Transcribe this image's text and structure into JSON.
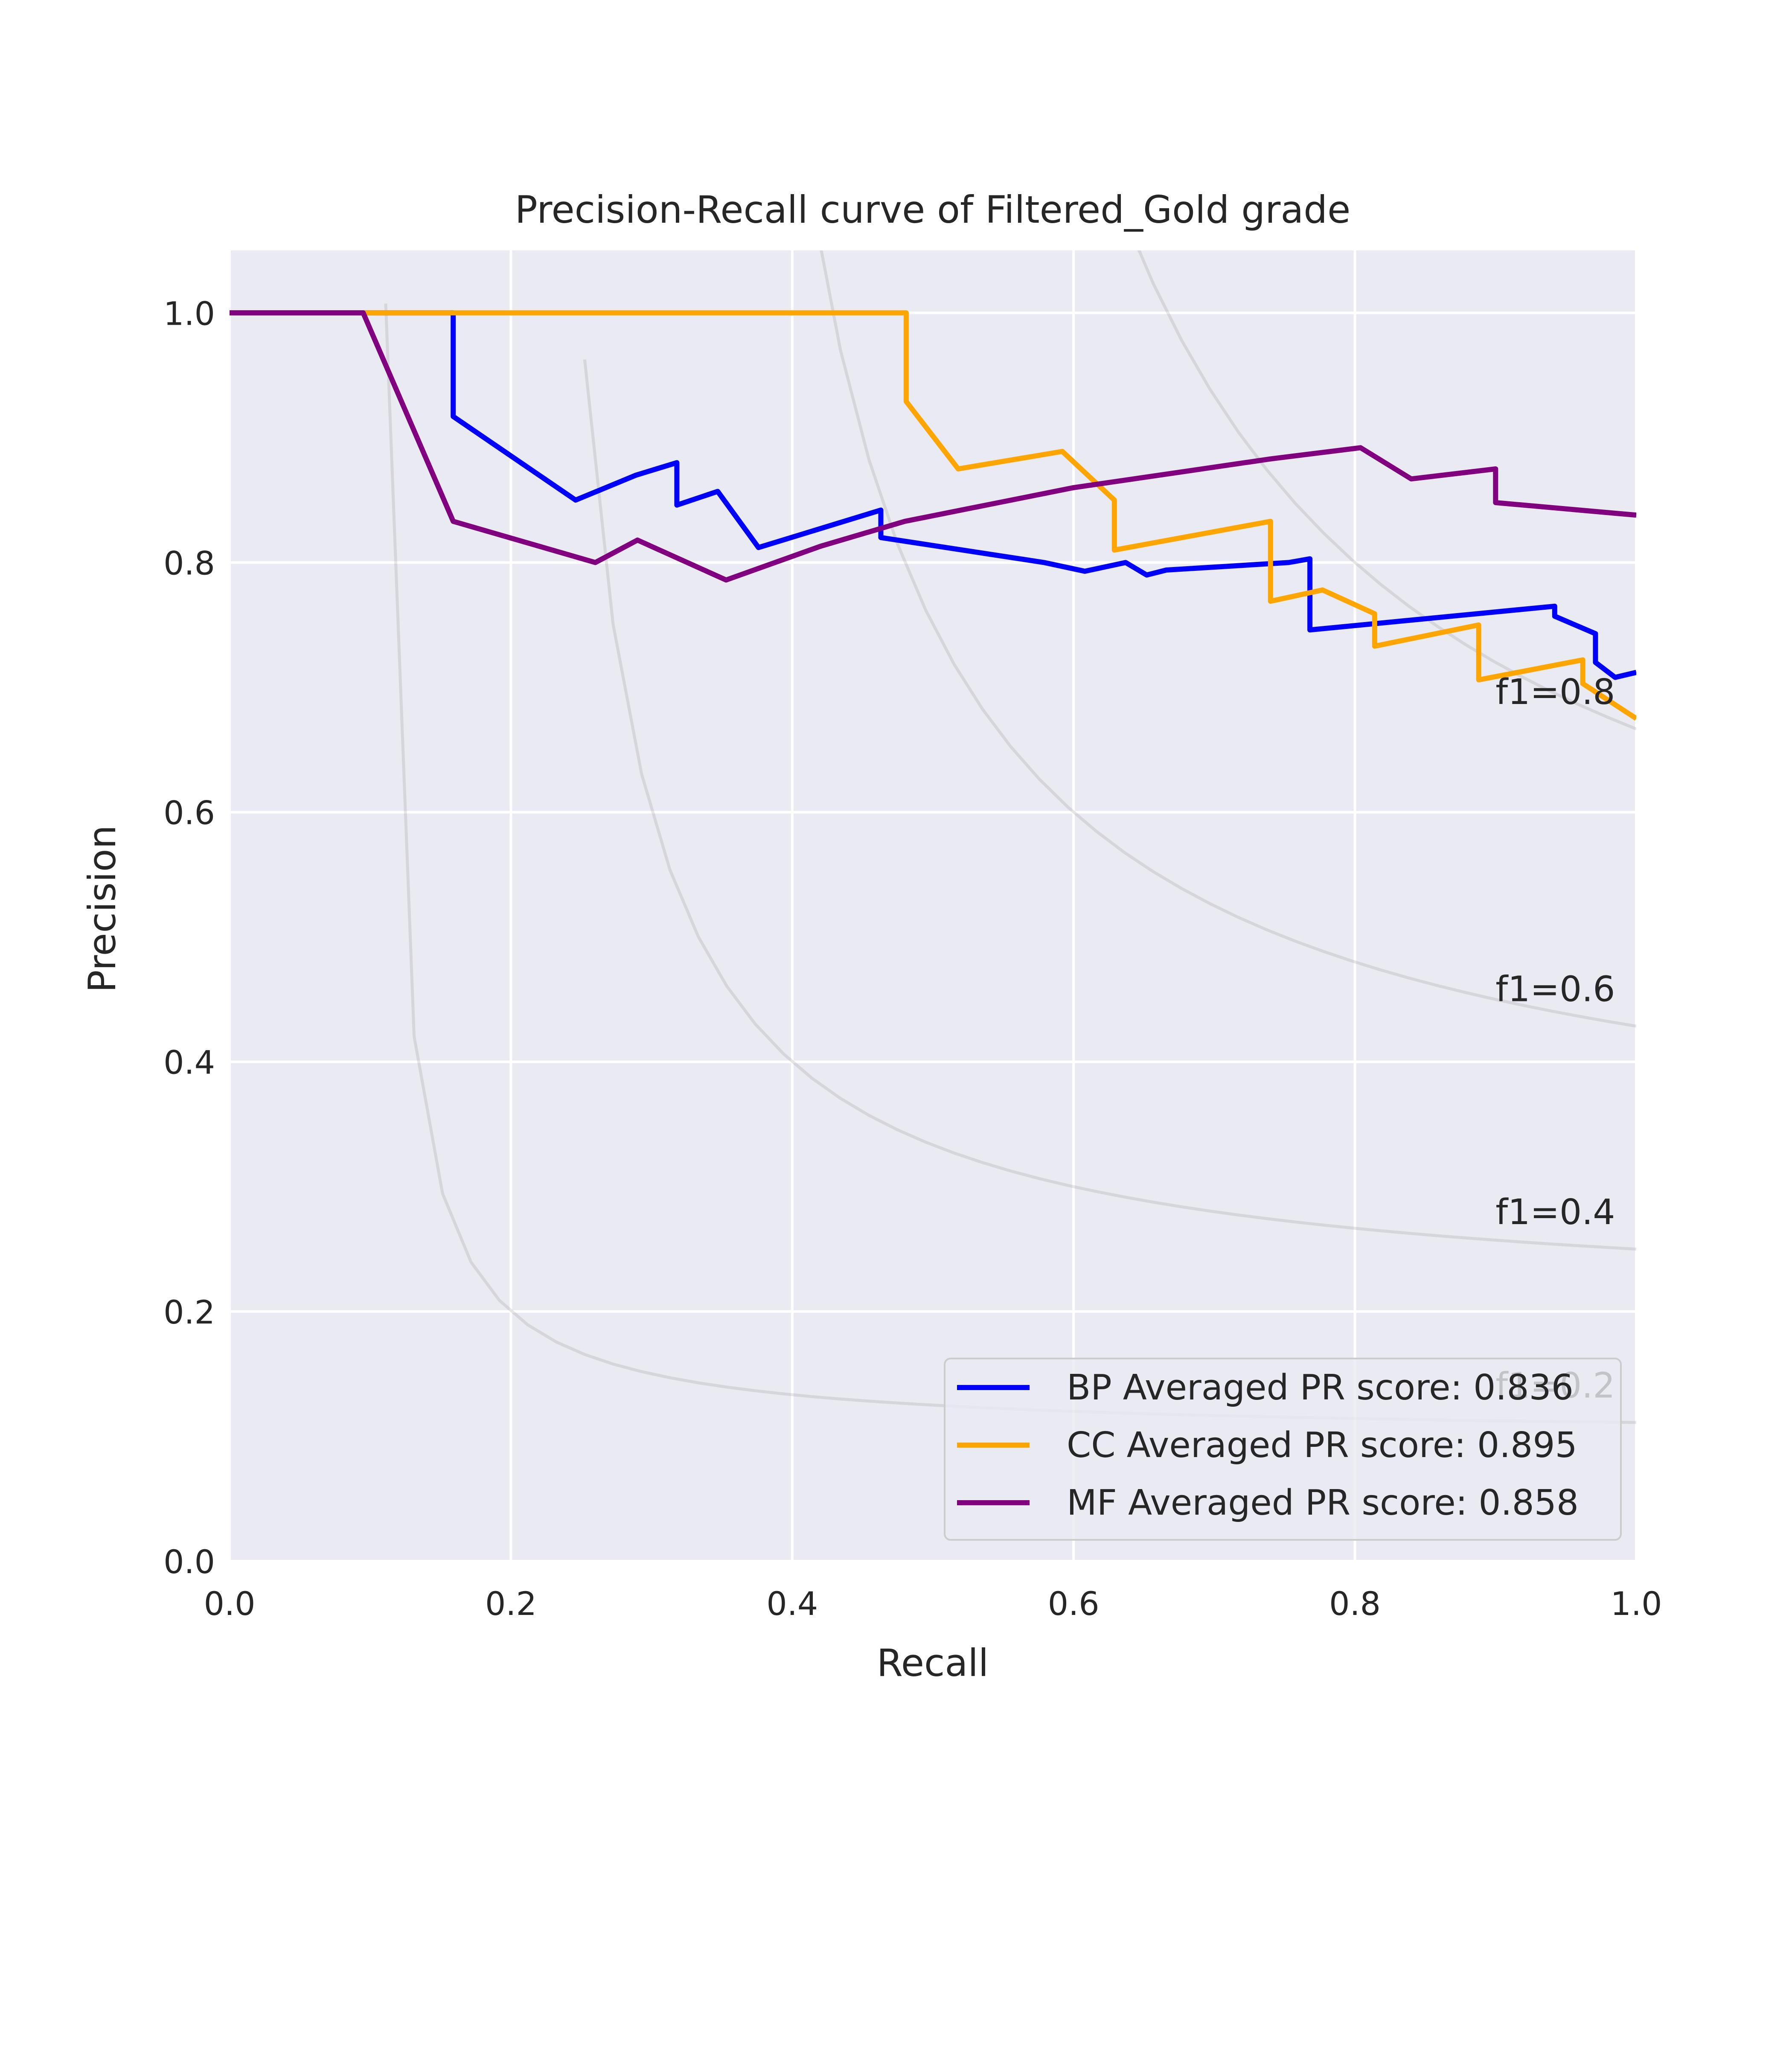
{
  "chart_data": {
    "type": "line",
    "title": "Precision-Recall curve of Filtered_Gold grade",
    "xlabel": "Recall",
    "ylabel": "Precision",
    "xlim": [
      0.0,
      1.0
    ],
    "ylim": [
      0.0,
      1.05
    ],
    "x_ticks": [
      "0.0",
      "0.2",
      "0.4",
      "0.6",
      "0.8",
      "1.0"
    ],
    "y_ticks": [
      "0.0",
      "0.2",
      "0.4",
      "0.6",
      "0.8",
      "1.0"
    ],
    "grid": true,
    "legend_position": "lower right",
    "iso_f1": [
      {
        "f1": 0.2,
        "label": "f1=0.2"
      },
      {
        "f1": 0.4,
        "label": "f1=0.4"
      },
      {
        "f1": 0.6,
        "label": "f1=0.6"
      },
      {
        "f1": 0.8,
        "label": "f1=0.8"
      }
    ],
    "series": [
      {
        "name": "BP Averaged PR score: 0.836",
        "color": "#0000ff",
        "x": [
          0.0,
          0.159,
          0.159,
          0.246,
          0.289,
          0.318,
          0.318,
          0.347,
          0.376,
          0.463,
          0.463,
          0.579,
          0.608,
          0.637,
          0.652,
          0.666,
          0.753,
          0.768,
          0.768,
          0.942,
          0.942,
          0.971,
          0.971,
          0.985,
          1.0
        ],
        "y": [
          1.0,
          1.0,
          0.917,
          0.85,
          0.87,
          0.88,
          0.846,
          0.857,
          0.812,
          0.842,
          0.82,
          0.8,
          0.793,
          0.8,
          0.79,
          0.794,
          0.8,
          0.803,
          0.746,
          0.765,
          0.757,
          0.743,
          0.72,
          0.708,
          0.712
        ]
      },
      {
        "name": "CC Averaged PR score: 0.895",
        "color": "#ffa500",
        "x": [
          0.0,
          0.481,
          0.481,
          0.518,
          0.592,
          0.629,
          0.629,
          0.74,
          0.74,
          0.777,
          0.814,
          0.814,
          0.888,
          0.888,
          0.962,
          0.962,
          1.0
        ],
        "y": [
          1.0,
          1.0,
          0.929,
          0.875,
          0.889,
          0.85,
          0.81,
          0.833,
          0.769,
          0.778,
          0.759,
          0.733,
          0.75,
          0.706,
          0.722,
          0.703,
          0.675
        ]
      },
      {
        "name": "MF Averaged PR score: 0.858",
        "color": "#800080",
        "x": [
          0.0,
          0.095,
          0.159,
          0.26,
          0.29,
          0.353,
          0.42,
          0.48,
          0.6,
          0.74,
          0.804,
          0.84,
          0.9,
          0.9,
          1.0
        ],
        "y": [
          1.0,
          1.0,
          0.833,
          0.8,
          0.818,
          0.786,
          0.813,
          0.833,
          0.86,
          0.883,
          0.892,
          0.867,
          0.875,
          0.848,
          0.838
        ]
      }
    ]
  }
}
